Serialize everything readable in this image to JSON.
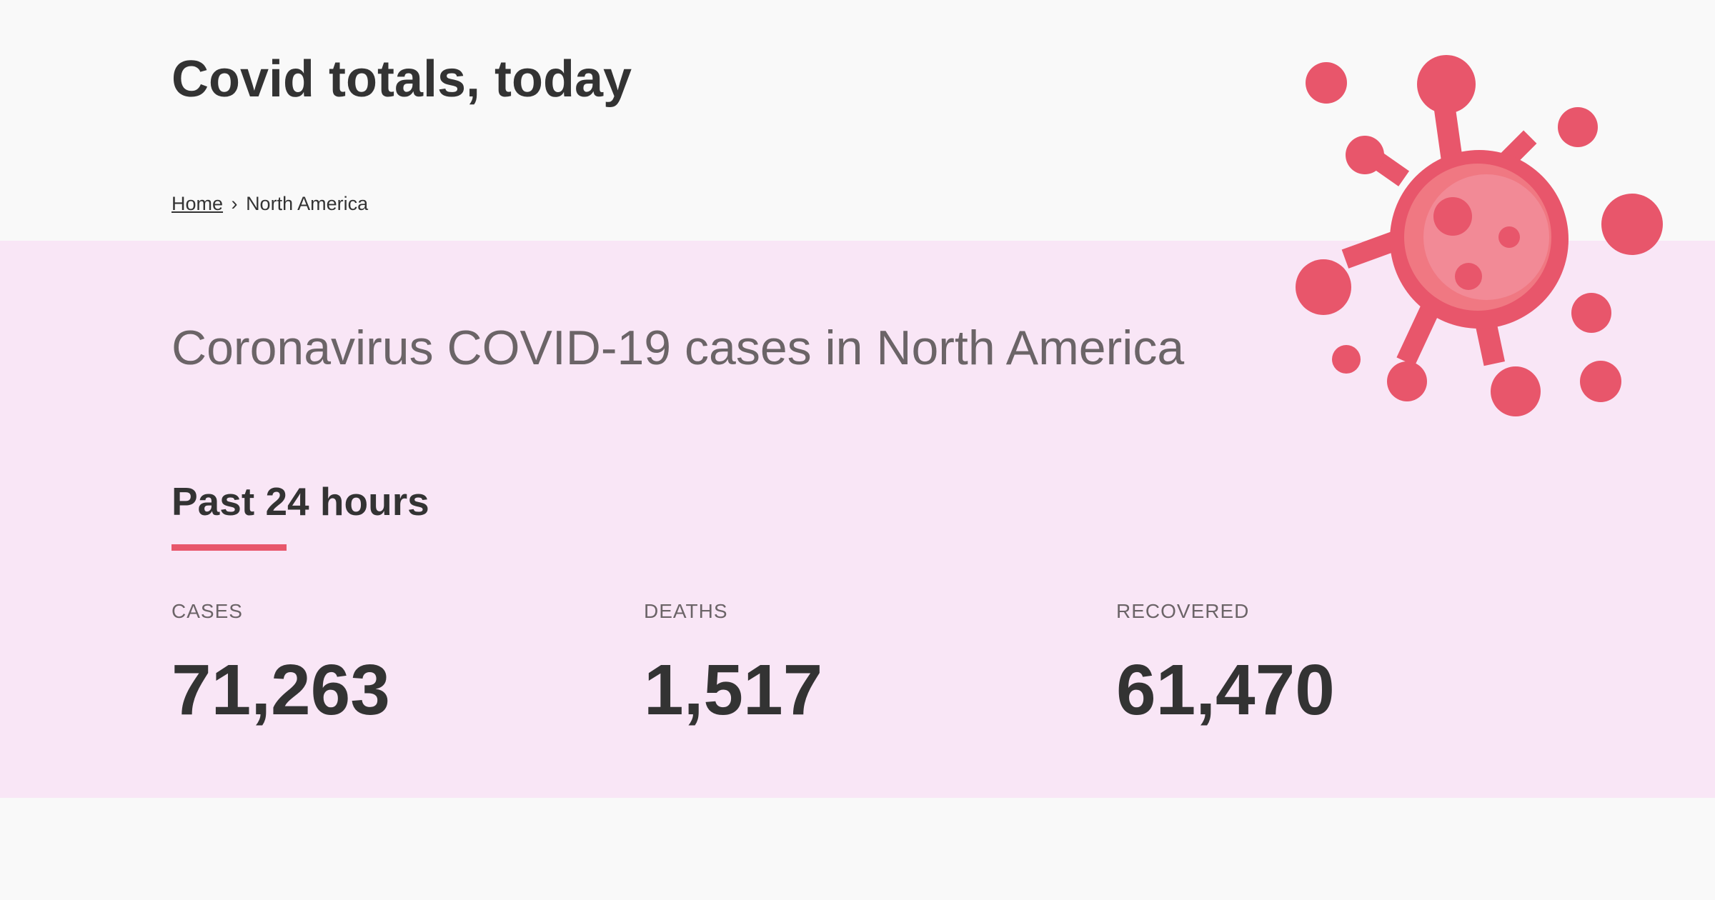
{
  "header": {
    "site_title": "Covid totals, today"
  },
  "breadcrumb": {
    "home_label": "Home",
    "separator": "›",
    "current": "North America"
  },
  "main": {
    "page_heading": "Coronavirus COVID-19 cases in North America",
    "section_heading": "Past 24 hours",
    "stats": [
      {
        "label": "Cases",
        "value": "71,263"
      },
      {
        "label": "Deaths",
        "value": "1,517"
      },
      {
        "label": "Recovered",
        "value": "61,470"
      }
    ]
  },
  "illustration": {
    "icon": "virus-icon",
    "colors": {
      "primary": "#e8566b",
      "highlight": "#f28a96"
    }
  },
  "colors": {
    "accent": "#e8566b",
    "band_background": "#f9e6f6",
    "page_background": "#f9f9f9"
  }
}
